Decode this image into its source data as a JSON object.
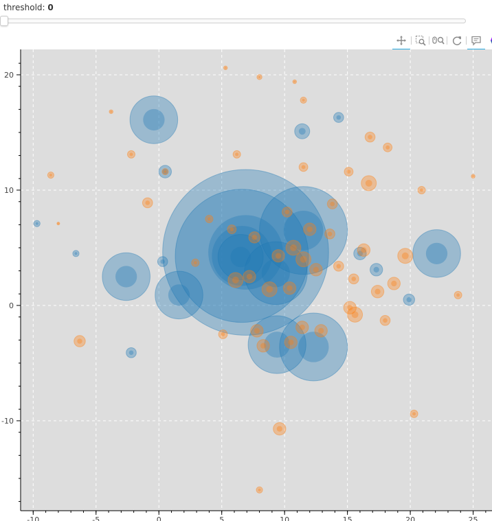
{
  "slider": {
    "label": "threshold: ",
    "value": "0"
  },
  "toolbar": {
    "tools": [
      "pan-icon",
      "box-zoom-icon",
      "wheel-zoom-icon",
      "reset-icon",
      "hover-icon",
      "bokeh-logo-icon"
    ]
  },
  "colors": {
    "blue": "#1f77b4",
    "orange": "#ff7f0e",
    "plot_bg": "#dddddd",
    "grid": "#ffffff"
  },
  "chart_data": {
    "type": "scatter",
    "xlim": [
      -11,
      26.5
    ],
    "ylim": [
      -17.8,
      22.2
    ],
    "xticks": [
      -10,
      -5,
      0,
      5,
      10,
      15,
      20,
      25
    ],
    "xtick_labels": [
      "-10",
      "-5",
      "0",
      "5",
      "10",
      "15",
      "20",
      "25"
    ],
    "yticks": [
      -10,
      0,
      10,
      20
    ],
    "ytick_labels": [
      "-10",
      "0",
      "10",
      "20"
    ],
    "grid": true,
    "series": [
      {
        "color": "blue",
        "points": [
          [
            6.9,
            4.6,
            6.6
          ],
          [
            6.6,
            4.3,
            5.3
          ],
          [
            11.5,
            6.5,
            3.5
          ],
          [
            9.3,
            2.8,
            2.5
          ],
          [
            12.3,
            -3.6,
            2.7
          ],
          [
            9.4,
            -3.4,
            2.3
          ],
          [
            -2.6,
            2.5,
            1.9
          ],
          [
            -0.4,
            16.1,
            1.9
          ],
          [
            22.1,
            4.5,
            1.9
          ],
          [
            1.6,
            0.9,
            1.9
          ],
          [
            6.5,
            4.2,
            1.8
          ],
          [
            11.4,
            15.1,
            0.6
          ],
          [
            0.5,
            11.6,
            0.5
          ],
          [
            -2.2,
            -4.1,
            0.4
          ],
          [
            -6.6,
            4.5,
            0.25
          ],
          [
            -9.7,
            7.1,
            0.25
          ],
          [
            19.9,
            0.5,
            0.45
          ],
          [
            14.3,
            16.3,
            0.4
          ],
          [
            17.3,
            3.1,
            0.5
          ],
          [
            16.0,
            4.5,
            0.5
          ],
          [
            0.3,
            3.8,
            0.4
          ]
        ]
      },
      {
        "color": "orange",
        "points": [
          [
            8.0,
            19.8,
            0.2
          ],
          [
            11.5,
            17.8,
            0.25
          ],
          [
            16.8,
            14.6,
            0.4
          ],
          [
            18.2,
            13.7,
            0.35
          ],
          [
            6.2,
            13.1,
            0.3
          ],
          [
            -2.2,
            13.1,
            0.3
          ],
          [
            -8.6,
            11.3,
            0.25
          ],
          [
            0.5,
            11.6,
            0.25
          ],
          [
            -0.9,
            8.9,
            0.4
          ],
          [
            11.5,
            12.0,
            0.35
          ],
          [
            15.1,
            11.6,
            0.35
          ],
          [
            16.7,
            10.6,
            0.6
          ],
          [
            20.9,
            10.0,
            0.3
          ],
          [
            25.0,
            11.2,
            0.15
          ],
          [
            12.0,
            6.6,
            0.5
          ],
          [
            13.6,
            6.2,
            0.4
          ],
          [
            10.7,
            5.0,
            0.6
          ],
          [
            9.5,
            4.3,
            0.5
          ],
          [
            11.5,
            4.0,
            0.6
          ],
          [
            12.5,
            3.1,
            0.5
          ],
          [
            7.2,
            2.5,
            0.5
          ],
          [
            8.8,
            1.4,
            0.6
          ],
          [
            10.4,
            1.5,
            0.5
          ],
          [
            6.1,
            2.2,
            0.6
          ],
          [
            14.3,
            3.4,
            0.4
          ],
          [
            15.5,
            2.3,
            0.4
          ],
          [
            17.4,
            1.2,
            0.5
          ],
          [
            19.6,
            4.3,
            0.6
          ],
          [
            18.7,
            1.9,
            0.5
          ],
          [
            15.2,
            -0.2,
            0.5
          ],
          [
            15.6,
            -0.8,
            0.6
          ],
          [
            18.0,
            -1.3,
            0.4
          ],
          [
            11.4,
            -1.9,
            0.5
          ],
          [
            12.9,
            -2.2,
            0.5
          ],
          [
            8.3,
            -3.5,
            0.5
          ],
          [
            7.8,
            -2.2,
            0.5
          ],
          [
            5.1,
            -2.5,
            0.35
          ],
          [
            10.5,
            -3.2,
            0.5
          ],
          [
            -6.3,
            -3.1,
            0.45
          ],
          [
            20.3,
            -9.4,
            0.3
          ],
          [
            9.6,
            -10.7,
            0.5
          ],
          [
            8.0,
            -16.0,
            0.25
          ],
          [
            23.8,
            0.9,
            0.3
          ],
          [
            -8.0,
            7.1,
            0.1
          ],
          [
            10.2,
            8.1,
            0.4
          ],
          [
            13.8,
            8.8,
            0.4
          ],
          [
            4.0,
            7.5,
            0.3
          ],
          [
            5.8,
            6.6,
            0.35
          ],
          [
            7.6,
            5.9,
            0.45
          ],
          [
            5.3,
            20.6,
            0.15
          ],
          [
            10.8,
            19.4,
            0.15
          ],
          [
            -3.8,
            16.8,
            0.15
          ],
          [
            16.3,
            4.8,
            0.5
          ],
          [
            2.9,
            3.7,
            0.3
          ]
        ]
      }
    ]
  }
}
